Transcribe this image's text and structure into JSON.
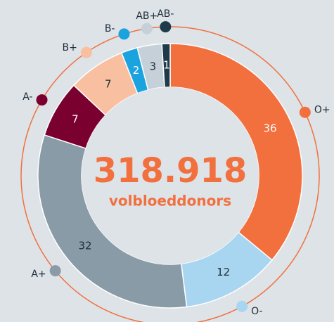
{
  "chart_data": {
    "type": "donut",
    "center_value": "318.918",
    "center_label": "volbloeddonors",
    "categories": [
      "O+",
      "O-",
      "A+",
      "A-",
      "B+",
      "B-",
      "AB+",
      "AB-"
    ],
    "values": [
      36,
      12,
      32,
      7,
      7,
      2,
      3,
      1
    ],
    "colors": [
      "#f26f3e",
      "#a8d5f0",
      "#8a9ba8",
      "#7a0030",
      "#f8c0a0",
      "#1ba3e0",
      "#c5d0d8",
      "#1f3a4a"
    ],
    "label_colors": [
      "#ffffff",
      "#1f2d3a",
      "#1f2d3a",
      "#ffffff",
      "#1f2d3a",
      "#ffffff",
      "#1f2d3a",
      "#ffffff"
    ]
  }
}
